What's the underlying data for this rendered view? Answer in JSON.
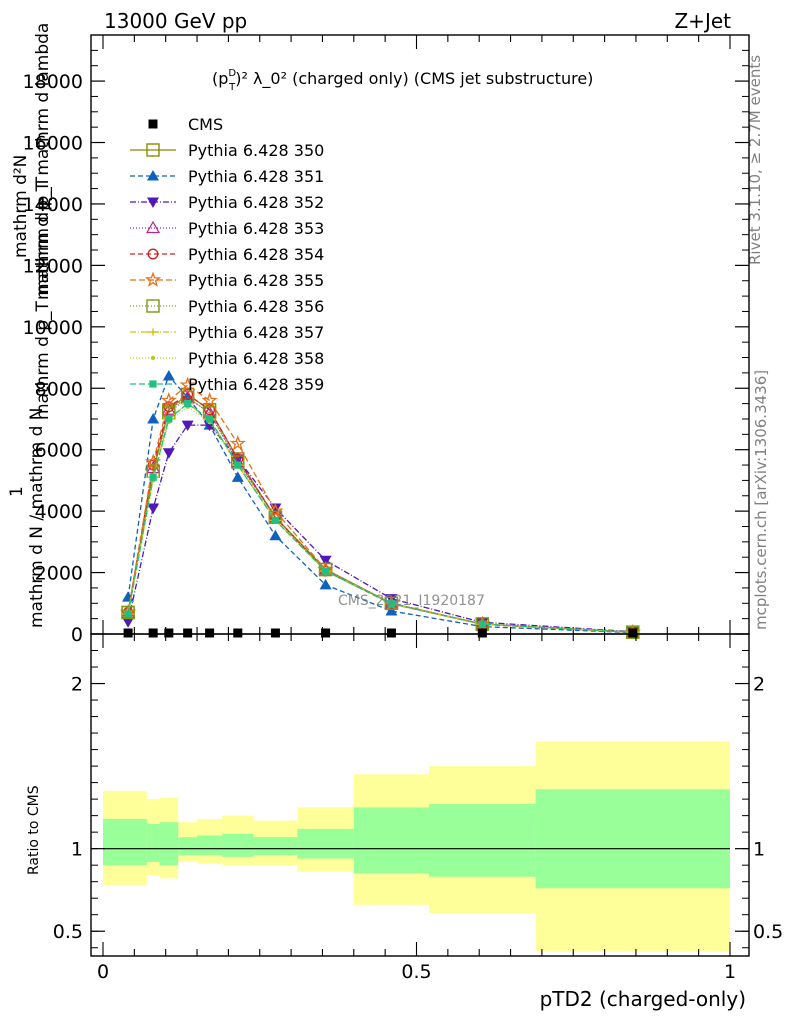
{
  "header": {
    "energy_label": "13000 GeV pp",
    "process_label": "Z+Jet",
    "rivet_label": "Rivet 3.1.10, ≥ 2.7M events",
    "mcplots_label": "mcplots.cern.ch [arXiv:1306.3436]",
    "watermark": "CMS_2021_I1920187"
  },
  "chart_data": [
    {
      "type": "line",
      "title_prefix": "(p",
      "title_sup": "D",
      "title_sub": "T",
      "title_rest": ")² λ_0² (charged only) (CMS jet substructure)",
      "ylabel_top": "mathrm d²N",
      "ylabel_mid1": "mathrm d p_T mathrm d lambda",
      "ylabel_one": "1",
      "ylabel_mid2": "mathrm d p_T mathrm d p_T",
      "ylabel_bottom": "mathrm d N / mathrm d N",
      "xlim": [
        0,
        1
      ],
      "ylim": [
        0,
        19500
      ],
      "yticks": [
        {
          "v": 0,
          "label": "0"
        },
        {
          "v": 2000,
          "label": "2000"
        },
        {
          "v": 4000,
          "label": "4000"
        },
        {
          "v": 6000,
          "label": "6000"
        },
        {
          "v": 8000,
          "label": "8000"
        },
        {
          "v": 10000,
          "label": "10000"
        },
        {
          "v": 12000,
          "label": "12000"
        },
        {
          "v": 14000,
          "label": "14000"
        },
        {
          "v": 16000,
          "label": "16000"
        },
        {
          "v": 18000,
          "label": "18000"
        }
      ],
      "x": [
        0.04,
        0.08,
        0.105,
        0.135,
        0.17,
        0.215,
        0.275,
        0.355,
        0.46,
        0.605,
        0.845
      ],
      "cms": [
        0,
        0,
        0,
        0,
        0,
        0,
        0,
        0,
        0,
        0,
        0
      ],
      "legend_position": "top-left",
      "series": [
        {
          "name": "Pythia 6.428 350",
          "marker": "square-open",
          "color": "#8b8b00",
          "dash": "",
          "values": [
            700,
            5300,
            7300,
            7800,
            7300,
            5700,
            3800,
            2100,
            1000,
            320,
            60
          ]
        },
        {
          "name": "Pythia 6.428 351",
          "marker": "triangle-up",
          "color": "#1060c0",
          "dash": "5,3",
          "values": [
            1200,
            7000,
            8400,
            7700,
            6800,
            5100,
            3200,
            1600,
            750,
            240,
            45
          ]
        },
        {
          "name": "Pythia 6.428 352",
          "marker": "triangle-down",
          "color": "#5018b8",
          "dash": "6,2,1,2",
          "values": [
            400,
            4100,
            5900,
            6800,
            6800,
            5700,
            4100,
            2400,
            1150,
            380,
            75
          ]
        },
        {
          "name": "Pythia 6.428 353",
          "marker": "triangle-up-open",
          "color": "#c02090",
          "dash": "1,2",
          "values": [
            700,
            5400,
            7300,
            7700,
            7200,
            5600,
            3800,
            2100,
            1000,
            330,
            60
          ]
        },
        {
          "name": "Pythia 6.428 354",
          "marker": "circle-open",
          "color": "#d02020",
          "dash": "5,3",
          "values": [
            700,
            5500,
            7400,
            7800,
            7300,
            5700,
            3800,
            2050,
            980,
            320,
            60
          ]
        },
        {
          "name": "Pythia 6.428 355",
          "marker": "star-open",
          "color": "#e87018",
          "dash": "6,3",
          "values": [
            700,
            5600,
            7600,
            8100,
            7600,
            6200,
            4000,
            2100,
            980,
            320,
            55
          ]
        },
        {
          "name": "Pythia 6.428 356",
          "marker": "square-open",
          "color": "#7a9a10",
          "dash": "1,2",
          "values": [
            700,
            5300,
            7200,
            7700,
            7200,
            5600,
            3800,
            2100,
            1000,
            330,
            60
          ]
        },
        {
          "name": "Pythia 6.428 357",
          "marker": "cross",
          "color": "#d8c010",
          "dash": "6,2,1,2",
          "values": [
            650,
            5100,
            7000,
            7500,
            7000,
            5500,
            3700,
            2050,
            990,
            320,
            60
          ]
        },
        {
          "name": "Pythia 6.428 358",
          "marker": "dot",
          "color": "#b0d020",
          "dash": "1,2",
          "values": [
            650,
            5000,
            6900,
            7400,
            6900,
            5500,
            3700,
            2050,
            990,
            320,
            60
          ]
        },
        {
          "name": "Pythia 6.428 359",
          "marker": "square-filled",
          "color": "#20c080",
          "dash": "6,3",
          "values": [
            650,
            5100,
            7000,
            7500,
            7000,
            5500,
            3700,
            2050,
            990,
            320,
            60
          ]
        }
      ]
    },
    {
      "type": "area",
      "ylabel": "Ratio to CMS",
      "xlabel": "pTD2 (charged-only)",
      "xlim": [
        0,
        1
      ],
      "ylim": [
        0.35,
        2.3
      ],
      "xticks": [
        {
          "v": 0,
          "label": "0"
        },
        {
          "v": 0.5,
          "label": "0.5"
        },
        {
          "v": 1,
          "label": "1"
        }
      ],
      "yticks": [
        {
          "v": 0.5,
          "label": "0.5"
        },
        {
          "v": 1,
          "label": "1"
        },
        {
          "v": 2,
          "label": "2"
        }
      ],
      "bins": [
        {
          "x0": 0.0,
          "x1": 0.07,
          "yl": 0.78,
          "yh": 1.35,
          "gl": 0.9,
          "gh": 1.18
        },
        {
          "x0": 0.07,
          "x1": 0.09,
          "yl": 0.84,
          "yh": 1.3,
          "gl": 0.92,
          "gh": 1.15
        },
        {
          "x0": 0.09,
          "x1": 0.12,
          "yl": 0.82,
          "yh": 1.31,
          "gl": 0.9,
          "gh": 1.16
        },
        {
          "x0": 0.12,
          "x1": 0.15,
          "yl": 0.92,
          "yh": 1.16,
          "gl": 0.96,
          "gh": 1.07
        },
        {
          "x0": 0.15,
          "x1": 0.19,
          "yl": 0.91,
          "yh": 1.18,
          "gl": 0.96,
          "gh": 1.08
        },
        {
          "x0": 0.19,
          "x1": 0.24,
          "yl": 0.9,
          "yh": 1.2,
          "gl": 0.95,
          "gh": 1.09
        },
        {
          "x0": 0.24,
          "x1": 0.31,
          "yl": 0.9,
          "yh": 1.17,
          "gl": 0.96,
          "gh": 1.07
        },
        {
          "x0": 0.31,
          "x1": 0.4,
          "yl": 0.86,
          "yh": 1.25,
          "gl": 0.94,
          "gh": 1.12
        },
        {
          "x0": 0.4,
          "x1": 0.52,
          "yl": 0.66,
          "yh": 1.45,
          "gl": 0.85,
          "gh": 1.25
        },
        {
          "x0": 0.52,
          "x1": 0.69,
          "yl": 0.61,
          "yh": 1.5,
          "gl": 0.83,
          "gh": 1.27
        },
        {
          "x0": 0.69,
          "x1": 1.0,
          "yl": 0.38,
          "yh": 1.65,
          "gl": 0.76,
          "gh": 1.36
        }
      ],
      "reference": 1
    }
  ]
}
